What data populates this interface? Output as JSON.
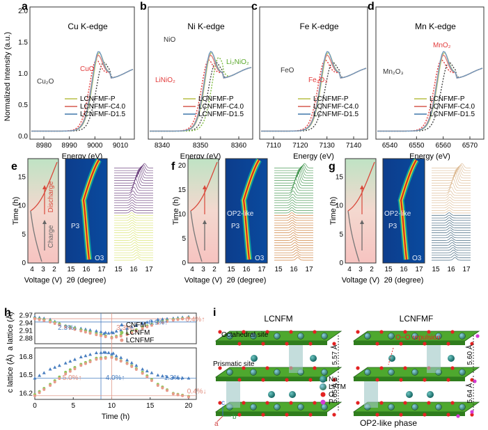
{
  "panel_letters": [
    "a",
    "b",
    "c",
    "d",
    "e",
    "f",
    "g",
    "h",
    "i"
  ],
  "xanes": {
    "ylabel": "Normalized Intensity (a.u.)",
    "xlabel": "Energy (eV)",
    "yticks": [
      "0.0",
      "0.5",
      "1.0",
      "1.5",
      "2.0"
    ],
    "legend": [
      "LCNFMF-P",
      "LCNFMF-C4.0",
      "LCNFMF-D1.5"
    ],
    "colors": {
      "P": "#c9cf74",
      "C": "#e0837a",
      "D": "#6e98bf",
      "ref1": "#444444",
      "ref2": "#e23b3b",
      "ref3": "#7ab93a"
    },
    "panels": [
      {
        "letter": "a",
        "title": "Cu K-edge",
        "xticks": [
          "8980",
          "8990",
          "9000",
          "9010"
        ],
        "refs": [
          "Cu₂O",
          "CuO"
        ]
      },
      {
        "letter": "b",
        "title": "Ni K-edge",
        "xticks": [
          "8340",
          "8350",
          "8360"
        ],
        "refs": [
          "NiO",
          "LiNiO₂",
          "Li₂NiO₂"
        ]
      },
      {
        "letter": "c",
        "title": "Fe K-edge",
        "xticks": [
          "7110",
          "7120",
          "7130",
          "7140"
        ],
        "refs": [
          "FeO",
          "Fe₂O₃"
        ]
      },
      {
        "letter": "d",
        "title": "Mn K-edge",
        "xticks": [
          "6540",
          "6550",
          "6560",
          "6570"
        ],
        "refs": [
          "Mn₂O₃",
          "MnO₂"
        ]
      }
    ]
  },
  "insitu": {
    "ylabel": "Time (h)",
    "xlabel_v": "Voltage (V)",
    "xlabel_t": "2θ (degree)",
    "vticks": [
      "4",
      "3",
      "2"
    ],
    "tticks": [
      "15",
      "16",
      "17"
    ],
    "panels": [
      {
        "letter": "e",
        "yticks": [
          "0",
          "5",
          "10",
          "15"
        ],
        "labels": [
          "P3",
          "O3"
        ],
        "arrows": [
          "Discharge",
          "Charge"
        ]
      },
      {
        "letter": "f",
        "yticks": [
          "0",
          "5",
          "10",
          "15",
          "20"
        ],
        "labels": [
          "OP2-like",
          "P3",
          "O3"
        ],
        "arrows": []
      },
      {
        "letter": "g",
        "yticks": [
          "0",
          "5",
          "10",
          "15"
        ],
        "labels": [
          "OP2-like",
          "P3",
          "O3"
        ],
        "arrows": []
      }
    ]
  },
  "chart_data": {
    "type": "scatter",
    "xlabel": "Time (h)",
    "xticks": [
      "0",
      "5",
      "10",
      "15",
      "20"
    ],
    "legend": [
      "CNFM",
      "LCNFM",
      "LCNFMF"
    ],
    "a_lattice": {
      "ylabel": "a lattice (Å)",
      "yticks": [
        "2.97",
        "2.94",
        "2.91",
        "2.88"
      ],
      "ylim": [
        2.86,
        2.98
      ],
      "annotations": [
        "2.3%↓",
        "3.3%↓",
        "0.9%↑",
        "0.4%↑"
      ]
    },
    "c_lattice": {
      "ylabel": "c lattice (Å)",
      "yticks": [
        "16.8",
        "16.5",
        "16.2"
      ],
      "ylim": [
        16.1,
        16.95
      ],
      "annotations": [
        "5.0%↑",
        "4.0%↑",
        "1.3%↓",
        "0.4%↓"
      ]
    },
    "series": [
      {
        "name": "CNFM",
        "x": [
          0,
          2,
          4,
          6,
          8,
          9,
          10,
          12,
          14,
          16,
          18,
          20
        ],
        "a": [
          2.966,
          2.955,
          2.93,
          2.92,
          2.91,
          2.9,
          2.905,
          2.92,
          2.94,
          2.955,
          2.96,
          2.966
        ],
        "c": [
          16.45,
          16.6,
          16.7,
          16.8,
          16.87,
          16.88,
          16.85,
          16.75,
          16.6,
          16.5,
          16.46,
          16.45
        ]
      },
      {
        "name": "LCNFM",
        "x": [
          0,
          2,
          4,
          6,
          8,
          10,
          12,
          14,
          16,
          18,
          20
        ],
        "a": [
          2.96,
          2.95,
          2.93,
          2.915,
          2.9,
          2.885,
          2.9,
          2.925,
          2.945,
          2.955,
          2.962
        ],
        "c": [
          16.18,
          16.35,
          16.55,
          16.68,
          16.78,
          16.8,
          16.7,
          16.55,
          16.35,
          16.2,
          16.15
        ]
      },
      {
        "name": "LCNFMF",
        "x": [
          0,
          2,
          4,
          6,
          8,
          10,
          12,
          14,
          16,
          18,
          20
        ],
        "a": [
          2.958,
          2.945,
          2.925,
          2.91,
          2.895,
          2.882,
          2.895,
          2.92,
          2.94,
          2.952,
          2.96
        ],
        "c": [
          16.16,
          16.33,
          16.52,
          16.66,
          16.76,
          16.79,
          16.69,
          16.53,
          16.33,
          16.19,
          16.14
        ]
      }
    ]
  },
  "structure": {
    "titles": [
      "LCNFM",
      "LCNFMF"
    ],
    "labels": {
      "octa": "Octahedral site",
      "prism": "Prismatic site",
      "repulsion": "O−O repulsion",
      "phase": "OP2-like phase"
    },
    "distances_left": [
      "5.57 Å",
      "5.65 Å"
    ],
    "distances_right": [
      "5.60 Å",
      "5.64 Å"
    ],
    "legend": [
      "Na",
      "Li/TM",
      "O",
      "F"
    ],
    "axes": [
      "a",
      "b",
      "c"
    ]
  }
}
